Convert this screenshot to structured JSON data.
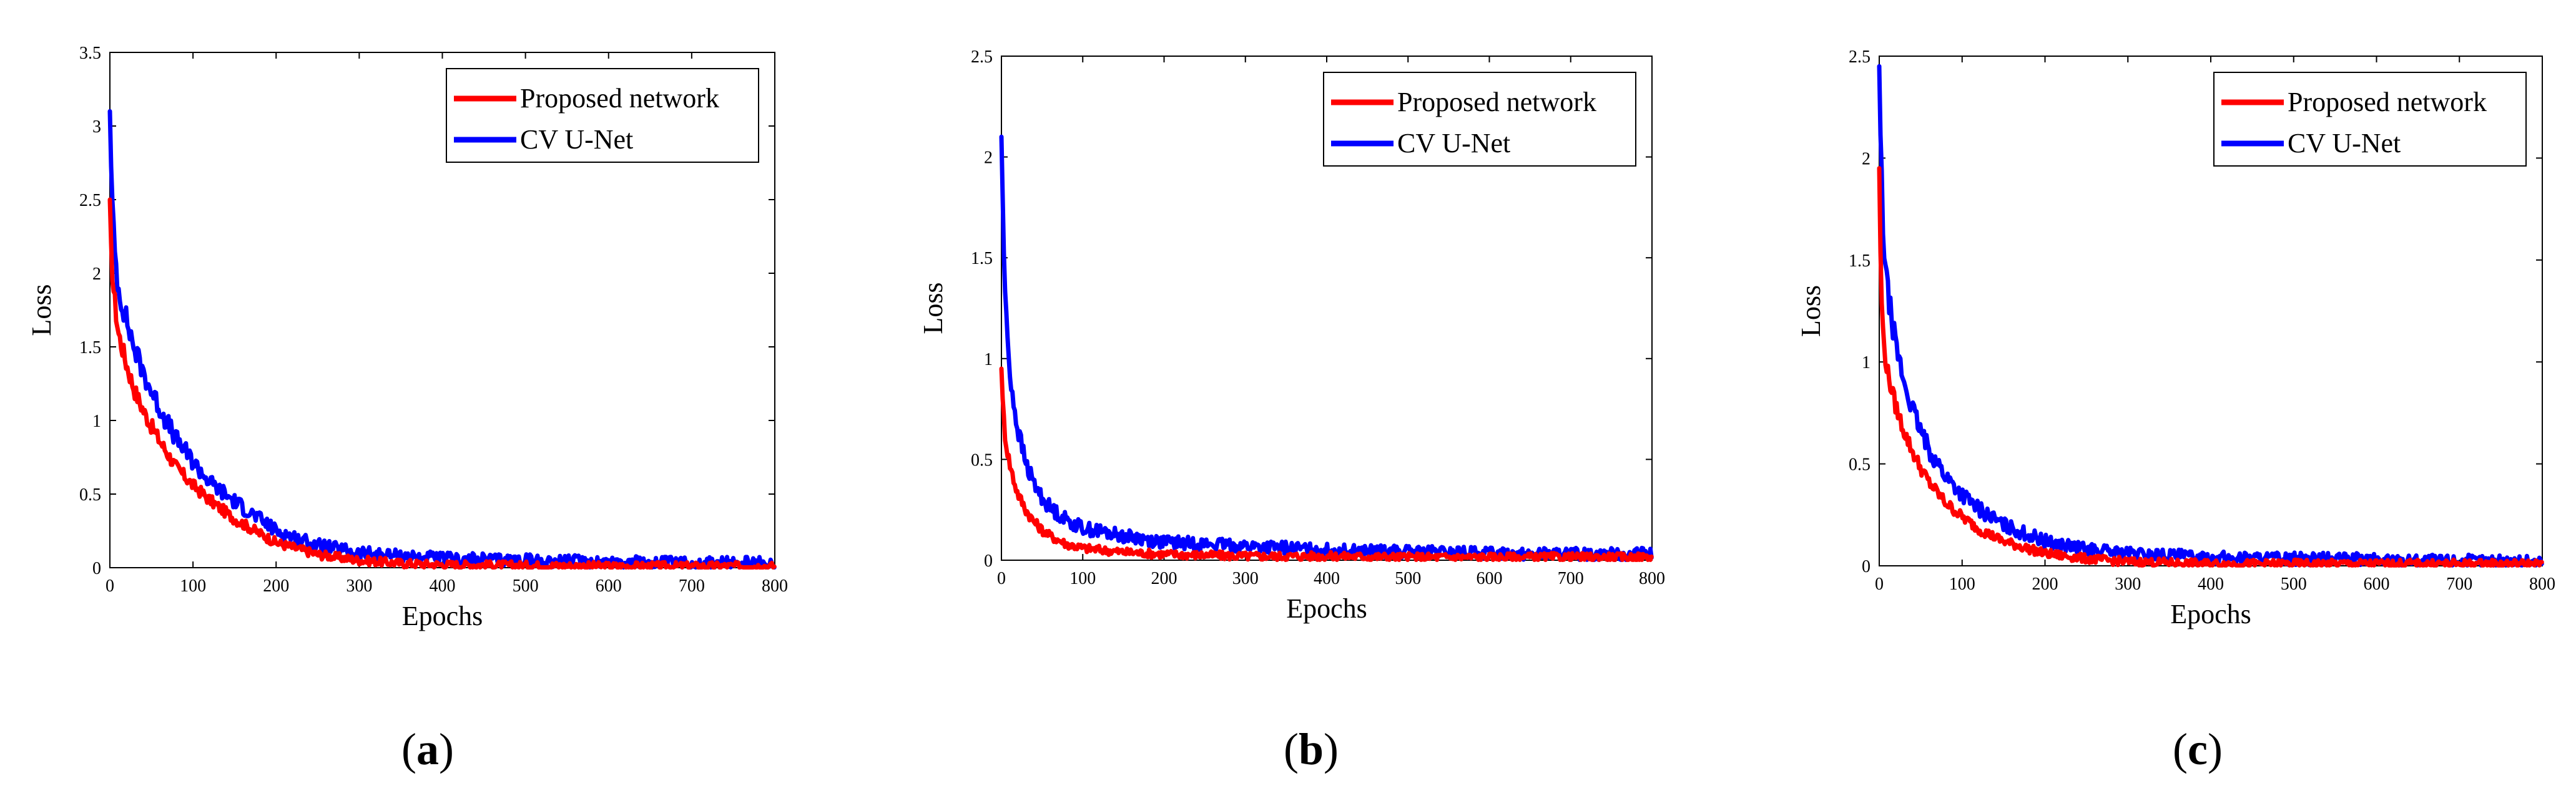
{
  "chart_data": [
    {
      "type": "line",
      "caption_letter": "a",
      "xlabel": "Epochs",
      "ylabel": "Loss",
      "xlim": [
        0,
        800
      ],
      "ylim": [
        0,
        3.5
      ],
      "xticks": [
        "0",
        "100",
        "200",
        "300",
        "400",
        "500",
        "600",
        "700",
        "800"
      ],
      "yticks": [
        "0",
        "0.5",
        "1",
        "1.5",
        "2",
        "2.5",
        "3",
        "3.5"
      ],
      "legend_position": "top-right",
      "series": [
        {
          "name": "Proposed network",
          "color": "#ff0000",
          "x": [
            0,
            2,
            5,
            10,
            20,
            30,
            40,
            50,
            60,
            80,
            100,
            120,
            150,
            200,
            250,
            300,
            350,
            400,
            500,
            600,
            700,
            800
          ],
          "y": [
            2.5,
            2.1,
            1.85,
            1.6,
            1.38,
            1.2,
            1.07,
            0.96,
            0.86,
            0.68,
            0.56,
            0.46,
            0.33,
            0.17,
            0.09,
            0.05,
            0.03,
            0.02,
            0.015,
            0.01,
            0.01,
            0.01
          ]
        },
        {
          "name": "CV U-Net",
          "color": "#0000ff",
          "x": [
            0,
            2,
            5,
            10,
            20,
            30,
            40,
            50,
            60,
            80,
            100,
            120,
            150,
            200,
            250,
            300,
            350,
            400,
            500,
            600,
            700,
            800
          ],
          "y": [
            3.1,
            2.6,
            2.2,
            1.9,
            1.68,
            1.48,
            1.33,
            1.2,
            1.08,
            0.87,
            0.72,
            0.58,
            0.45,
            0.25,
            0.15,
            0.1,
            0.08,
            0.06,
            0.05,
            0.04,
            0.03,
            0.03
          ]
        }
      ]
    },
    {
      "type": "line",
      "caption_letter": "b",
      "xlabel": "Epochs",
      "ylabel": "Loss",
      "xlim": [
        0,
        800
      ],
      "ylim": [
        0,
        2.5
      ],
      "xticks": [
        "0",
        "100",
        "200",
        "300",
        "400",
        "500",
        "600",
        "700",
        "800"
      ],
      "yticks": [
        "0",
        "0.5",
        "1",
        "1.5",
        "2",
        "2.5"
      ],
      "legend_position": "top-right",
      "series": [
        {
          "name": "Proposed network",
          "color": "#ff0000",
          "x": [
            0,
            2,
            5,
            10,
            15,
            20,
            30,
            40,
            50,
            60,
            80,
            100,
            150,
            200,
            250,
            300,
            400,
            500,
            600,
            700,
            800
          ],
          "y": [
            0.95,
            0.75,
            0.6,
            0.48,
            0.4,
            0.33,
            0.25,
            0.19,
            0.15,
            0.12,
            0.08,
            0.06,
            0.04,
            0.03,
            0.025,
            0.02,
            0.02,
            0.015,
            0.015,
            0.015,
            0.015
          ]
        },
        {
          "name": "CV U-Net",
          "color": "#0000ff",
          "x": [
            0,
            2,
            5,
            10,
            15,
            20,
            30,
            40,
            50,
            60,
            80,
            100,
            150,
            200,
            250,
            300,
            400,
            500,
            600,
            700,
            800
          ],
          "y": [
            2.1,
            1.7,
            1.25,
            0.95,
            0.78,
            0.65,
            0.48,
            0.38,
            0.31,
            0.26,
            0.2,
            0.16,
            0.12,
            0.09,
            0.08,
            0.07,
            0.05,
            0.04,
            0.035,
            0.03,
            0.03
          ]
        }
      ]
    },
    {
      "type": "line",
      "caption_letter": "c",
      "xlabel": "Epochs",
      "ylabel": "Loss",
      "xlim": [
        0,
        800
      ],
      "ylim": [
        0,
        2.5
      ],
      "xticks": [
        "0",
        "100",
        "200",
        "300",
        "400",
        "500",
        "600",
        "700",
        "800"
      ],
      "yticks": [
        "0",
        "0.5",
        "1",
        "1.5",
        "2",
        "2.5"
      ],
      "legend_position": "top-right",
      "series": [
        {
          "name": "Proposed network",
          "color": "#ff0000",
          "x": [
            0,
            2,
            5,
            10,
            20,
            30,
            40,
            50,
            60,
            80,
            100,
            120,
            150,
            200,
            250,
            300,
            350,
            400,
            500,
            600,
            700,
            800
          ],
          "y": [
            1.95,
            1.4,
            1.1,
            0.95,
            0.78,
            0.66,
            0.56,
            0.48,
            0.41,
            0.31,
            0.24,
            0.18,
            0.12,
            0.06,
            0.035,
            0.02,
            0.015,
            0.01,
            0.01,
            0.01,
            0.01,
            0.01
          ]
        },
        {
          "name": "CV U-Net",
          "color": "#0000ff",
          "x": [
            0,
            2,
            5,
            10,
            20,
            30,
            40,
            50,
            60,
            80,
            100,
            120,
            150,
            200,
            250,
            300,
            350,
            400,
            500,
            600,
            700,
            800
          ],
          "y": [
            2.45,
            2.0,
            1.6,
            1.35,
            1.08,
            0.9,
            0.77,
            0.66,
            0.57,
            0.44,
            0.35,
            0.28,
            0.2,
            0.12,
            0.08,
            0.06,
            0.05,
            0.04,
            0.035,
            0.03,
            0.025,
            0.02
          ]
        }
      ]
    }
  ]
}
